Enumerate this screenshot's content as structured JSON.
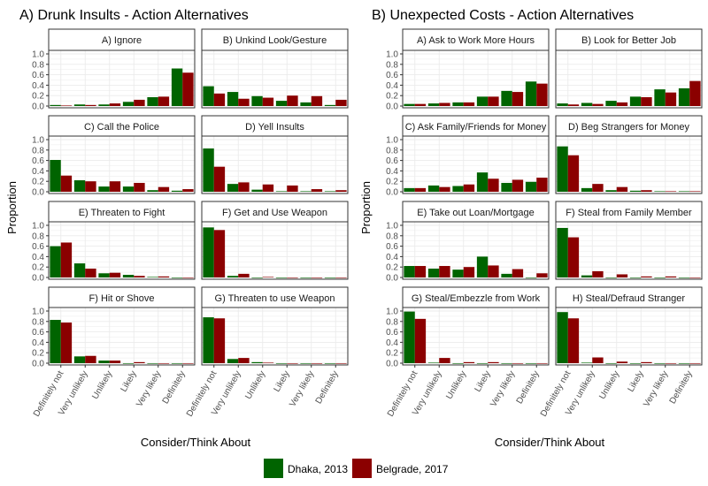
{
  "chart_data": [
    {
      "type": "bar",
      "title": "A) Drunk Insults - Action Alternatives",
      "xlabel": "Consider/Think About",
      "ylabel": "Proportion",
      "ylim": [
        0,
        1
      ],
      "yticks": [
        "0.0",
        "0.2",
        "0.4",
        "0.6",
        "0.8",
        "1.0"
      ],
      "categories": [
        "Definitely not",
        "Very unlikely",
        "Unlikely",
        "Likely",
        "Very likely",
        "Definitely"
      ],
      "facets": [
        {
          "title": "A) Ignore",
          "series": [
            {
              "name": "Dhaka, 2013",
              "values": [
                0.02,
                0.03,
                0.03,
                0.08,
                0.17,
                0.72
              ]
            },
            {
              "name": "Belgrade, 2017",
              "values": [
                0.01,
                0.02,
                0.05,
                0.12,
                0.18,
                0.64
              ]
            }
          ]
        },
        {
          "title": "B) Unkind Look/Gesture",
          "series": [
            {
              "name": "Dhaka, 2013",
              "values": [
                0.38,
                0.27,
                0.19,
                0.1,
                0.07,
                0.02
              ]
            },
            {
              "name": "Belgrade, 2017",
              "values": [
                0.24,
                0.14,
                0.16,
                0.2,
                0.19,
                0.12
              ]
            }
          ]
        },
        {
          "title": "C) Call the Police",
          "series": [
            {
              "name": "Dhaka, 2013",
              "values": [
                0.61,
                0.22,
                0.1,
                0.1,
                0.03,
                0.02
              ]
            },
            {
              "name": "Belgrade, 2017",
              "values": [
                0.31,
                0.2,
                0.2,
                0.17,
                0.09,
                0.05
              ]
            }
          ]
        },
        {
          "title": "D) Yell Insults",
          "series": [
            {
              "name": "Dhaka, 2013",
              "values": [
                0.83,
                0.15,
                0.04,
                0.01,
                0.01,
                0.01
              ]
            },
            {
              "name": "Belgrade, 2017",
              "values": [
                0.48,
                0.18,
                0.14,
                0.12,
                0.05,
                0.03
              ]
            }
          ]
        },
        {
          "title": "E) Threaten to Fight",
          "series": [
            {
              "name": "Dhaka, 2013",
              "values": [
                0.6,
                0.27,
                0.08,
                0.05,
                0.01,
                0.0
              ]
            },
            {
              "name": "Belgrade, 2017",
              "values": [
                0.67,
                0.17,
                0.09,
                0.03,
                0.02,
                0.0
              ]
            }
          ]
        },
        {
          "title": "F) Get and Use Weapon",
          "series": [
            {
              "name": "Dhaka, 2013",
              "values": [
                0.96,
                0.03,
                0.0,
                0.0,
                0.0,
                0.0
              ]
            },
            {
              "name": "Belgrade, 2017",
              "values": [
                0.91,
                0.07,
                0.01,
                0.0,
                0.0,
                0.0
              ]
            }
          ]
        },
        {
          "title": "F) Hit or Shove",
          "series": [
            {
              "name": "Dhaka, 2013",
              "values": [
                0.83,
                0.13,
                0.05,
                0.0,
                0.0,
                0.0
              ]
            },
            {
              "name": "Belgrade, 2017",
              "values": [
                0.78,
                0.14,
                0.05,
                0.02,
                0.0,
                0.0
              ]
            }
          ]
        },
        {
          "title": "G) Threaten to use Weapon",
          "series": [
            {
              "name": "Dhaka, 2013",
              "values": [
                0.88,
                0.08,
                0.02,
                0.0,
                0.0,
                0.0
              ]
            },
            {
              "name": "Belgrade, 2017",
              "values": [
                0.86,
                0.1,
                0.01,
                0.0,
                0.0,
                0.0
              ]
            }
          ]
        }
      ]
    },
    {
      "type": "bar",
      "title": "B) Unexpected Costs - Action Alternatives",
      "xlabel": "Consider/Think About",
      "ylabel": "Proportion",
      "ylim": [
        0,
        1
      ],
      "yticks": [
        "0.0",
        "0.2",
        "0.4",
        "0.6",
        "0.8",
        "1.0"
      ],
      "categories": [
        "Definitely not",
        "Very unlikely",
        "Unlikely",
        "Likely",
        "Very likely",
        "Definitely"
      ],
      "facets": [
        {
          "title": "A) Ask to Work More Hours",
          "series": [
            {
              "name": "Dhaka, 2013",
              "values": [
                0.04,
                0.05,
                0.07,
                0.18,
                0.29,
                0.47
              ]
            },
            {
              "name": "Belgrade, 2017",
              "values": [
                0.04,
                0.06,
                0.07,
                0.18,
                0.27,
                0.43
              ]
            }
          ]
        },
        {
          "title": "B) Look for Better Job",
          "series": [
            {
              "name": "Dhaka, 2013",
              "values": [
                0.05,
                0.06,
                0.1,
                0.18,
                0.32,
                0.34
              ]
            },
            {
              "name": "Belgrade, 2017",
              "values": [
                0.03,
                0.04,
                0.07,
                0.17,
                0.26,
                0.48
              ]
            }
          ]
        },
        {
          "title": "C) Ask Family/Friends for Money",
          "series": [
            {
              "name": "Dhaka, 2013",
              "values": [
                0.07,
                0.12,
                0.11,
                0.37,
                0.17,
                0.19
              ]
            },
            {
              "name": "Belgrade, 2017",
              "values": [
                0.07,
                0.09,
                0.14,
                0.25,
                0.23,
                0.27
              ]
            }
          ]
        },
        {
          "title": "D) Beg Strangers for Money",
          "series": [
            {
              "name": "Dhaka, 2013",
              "values": [
                0.87,
                0.07,
                0.03,
                0.02,
                0.01,
                0.01
              ]
            },
            {
              "name": "Belgrade, 2017",
              "values": [
                0.7,
                0.15,
                0.09,
                0.03,
                0.01,
                0.01
              ]
            }
          ]
        },
        {
          "title": "E) Take out Loan/Mortgage",
          "series": [
            {
              "name": "Dhaka, 2013",
              "values": [
                0.22,
                0.17,
                0.15,
                0.4,
                0.07,
                0.0
              ]
            },
            {
              "name": "Belgrade, 2017",
              "values": [
                0.22,
                0.22,
                0.2,
                0.23,
                0.16,
                0.08
              ]
            }
          ]
        },
        {
          "title": "F) Steal from Family Member",
          "series": [
            {
              "name": "Dhaka, 2013",
              "values": [
                0.95,
                0.04,
                0.0,
                0.0,
                0.0,
                0.0
              ]
            },
            {
              "name": "Belgrade, 2017",
              "values": [
                0.77,
                0.12,
                0.06,
                0.02,
                0.02,
                0.0
              ]
            }
          ]
        },
        {
          "title": "G) Steal/Embezzle from Work",
          "series": [
            {
              "name": "Dhaka, 2013",
              "values": [
                0.99,
                0.01,
                0.0,
                0.0,
                0.0,
                0.0
              ]
            },
            {
              "name": "Belgrade, 2017",
              "values": [
                0.85,
                0.1,
                0.02,
                0.02,
                0.0,
                0.0
              ]
            }
          ]
        },
        {
          "title": "H) Steal/Defraud Stranger",
          "series": [
            {
              "name": "Dhaka, 2013",
              "values": [
                0.98,
                0.01,
                0.0,
                0.0,
                0.0,
                0.0
              ]
            },
            {
              "name": "Belgrade, 2017",
              "values": [
                0.86,
                0.11,
                0.03,
                0.02,
                0.0,
                0.0
              ]
            }
          ]
        }
      ]
    }
  ],
  "legend": {
    "position": "bottom",
    "items": [
      {
        "label": "Dhaka, 2013",
        "color": "#006400"
      },
      {
        "label": "Belgrade, 2017",
        "color": "#8b0000"
      }
    ]
  },
  "grid": true,
  "colors": {
    "dhaka": "#006400",
    "belgrade": "#8b0000",
    "grid": "#ebebeb",
    "panel_border": "#333333"
  }
}
